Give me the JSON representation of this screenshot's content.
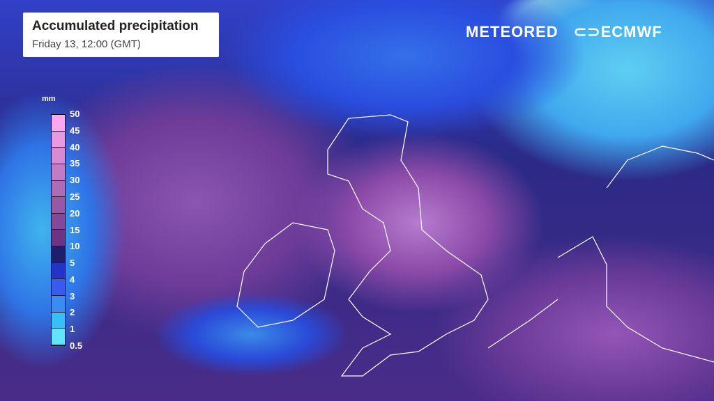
{
  "header": {
    "title": "Accumulated precipitation",
    "subtitle": "Friday 13, 12:00 (GMT)"
  },
  "brands": {
    "meteored": "METEORED",
    "ecmwf": "ECMWF"
  },
  "legend": {
    "unit": "mm",
    "labels": [
      "50",
      "45",
      "40",
      "35",
      "30",
      "25",
      "20",
      "15",
      "10",
      "5",
      "4",
      "3",
      "2",
      "1",
      "0.5"
    ],
    "colors": [
      "#ffa8f0",
      "#e89ae0",
      "#d58ad2",
      "#c27cc4",
      "#ad6cb4",
      "#9858a4",
      "#844896",
      "#6c3482",
      "#1e1e6a",
      "#2434c8",
      "#3a5cee",
      "#3a8cf2",
      "#38c0f6",
      "#62e4fc"
    ]
  }
}
